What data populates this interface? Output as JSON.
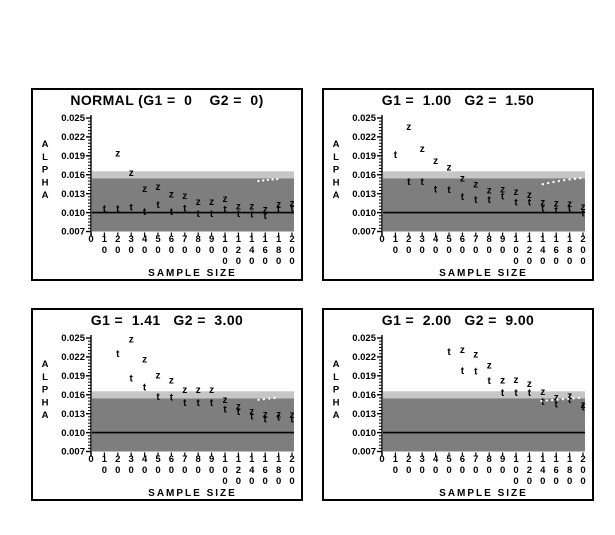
{
  "figure": {
    "background_color": "#ffffff",
    "panel_border_color": "#000000",
    "band_dark_color": "#7e7e7e",
    "band_light_color": "#c6c6c6",
    "marker_color": "#000000",
    "white_dot_color": "#ffffff",
    "y_axis": {
      "label": "ALPHA",
      "ticks": [
        0.025,
        0.022,
        0.019,
        0.016,
        0.013,
        0.01,
        0.007
      ],
      "tick_labels": [
        "0.025",
        "0.022",
        "0.019",
        "0.016",
        "0.013",
        "0.010",
        "0.007"
      ],
      "minor_tick_step": 0.0005
    },
    "x_axis": {
      "label": "SAMPLE SIZE",
      "ticks": [
        0,
        10,
        20,
        30,
        40,
        50,
        60,
        70,
        80,
        90,
        100,
        120,
        140,
        160,
        180,
        200
      ],
      "tick_labels": [
        "0",
        "10",
        "20",
        "30",
        "40",
        "50",
        "60",
        "70",
        "80",
        "90",
        "100",
        "120",
        "140",
        "160",
        "180",
        "200"
      ]
    }
  },
  "chart_data": [
    {
      "type": "scatter",
      "title": "NORMAL (G1 =  0    G2 =  0)",
      "xlabel": "SAMPLE SIZE",
      "ylabel": "ALPHA",
      "ylim": [
        0.007,
        0.025
      ],
      "nominal_alpha_line": 0.01,
      "shaded_bands": [
        {
          "range": [
            0.007,
            0.01545
          ],
          "color": "#7e7e7e"
        },
        {
          "range": [
            0.01545,
            0.01655
          ],
          "color": "#c6c6c6"
        }
      ],
      "series": [
        {
          "name": "z test",
          "marker": "z",
          "points": [
            [
              20,
              0.0194
            ],
            [
              30,
              0.0163
            ],
            [
              40,
              0.0138
            ],
            [
              50,
              0.0141
            ],
            [
              60,
              0.0129
            ],
            [
              70,
              0.0127
            ],
            [
              80,
              0.0117
            ],
            [
              90,
              0.0117
            ],
            [
              100,
              0.0122
            ],
            [
              120,
              0.011
            ],
            [
              140,
              0.011
            ],
            [
              160,
              0.0105
            ],
            [
              180,
              0.0113
            ],
            [
              200,
              0.0115
            ]
          ]
        },
        {
          "name": "t test",
          "marker": "t",
          "points": [
            [
              10,
              0.0106
            ],
            [
              20,
              0.0106
            ],
            [
              30,
              0.0108
            ],
            [
              40,
              0.0101
            ],
            [
              50,
              0.0112
            ],
            [
              60,
              0.0101
            ],
            [
              70,
              0.0107
            ],
            [
              80,
              0.0098
            ],
            [
              90,
              0.0098
            ],
            [
              100,
              0.0105
            ],
            [
              120,
              0.0098
            ],
            [
              140,
              0.0097
            ],
            [
              160,
              0.0095
            ],
            [
              180,
              0.0105
            ],
            [
              200,
              0.0107
            ]
          ]
        },
        {
          "name": "white dotted reference",
          "marker": "white-dot",
          "points": [
            [
              150,
              0.015
            ],
            [
              157,
              0.0151
            ],
            [
              164,
              0.01518
            ],
            [
              171,
              0.01525
            ],
            [
              178,
              0.01532
            ]
          ]
        }
      ]
    },
    {
      "type": "scatter",
      "title": "G1 =  1.00   G2 =  1.50",
      "xlabel": "SAMPLE SIZE",
      "ylabel": "ALPHA",
      "ylim": [
        0.007,
        0.025
      ],
      "nominal_alpha_line": 0.01,
      "shaded_bands": [
        {
          "range": [
            0.007,
            0.01545
          ],
          "color": "#7e7e7e"
        },
        {
          "range": [
            0.01545,
            0.01655
          ],
          "color": "#c6c6c6"
        }
      ],
      "series": [
        {
          "name": "z test",
          "marker": "z",
          "points": [
            [
              20,
              0.0236
            ],
            [
              30,
              0.0201
            ],
            [
              40,
              0.0182
            ],
            [
              50,
              0.0172
            ],
            [
              60,
              0.0154
            ],
            [
              70,
              0.0145
            ],
            [
              80,
              0.0135
            ],
            [
              90,
              0.0137
            ],
            [
              100,
              0.0133
            ],
            [
              120,
              0.0128
            ],
            [
              140,
              0.0116
            ],
            [
              160,
              0.0115
            ],
            [
              180,
              0.0114
            ],
            [
              200,
              0.0109
            ]
          ]
        },
        {
          "name": "t test",
          "marker": "t",
          "points": [
            [
              10,
              0.0192
            ],
            [
              20,
              0.0149
            ],
            [
              30,
              0.0149
            ],
            [
              40,
              0.0137
            ],
            [
              50,
              0.0136
            ],
            [
              60,
              0.0125
            ],
            [
              70,
              0.012
            ],
            [
              80,
              0.012
            ],
            [
              90,
              0.0126
            ],
            [
              100,
              0.0116
            ],
            [
              120,
              0.0116
            ],
            [
              140,
              0.0107
            ],
            [
              160,
              0.0104
            ],
            [
              180,
              0.0107
            ],
            [
              200,
              0.0099
            ]
          ]
        },
        {
          "name": "white dotted reference",
          "marker": "white-dot",
          "points": [
            [
              140,
              0.0145
            ],
            [
              148,
              0.01468
            ],
            [
              156,
              0.01485
            ],
            [
              164,
              0.015
            ],
            [
              172,
              0.01513
            ],
            [
              180,
              0.01525
            ],
            [
              188,
              0.01535
            ],
            [
              196,
              0.01545
            ]
          ]
        }
      ]
    },
    {
      "type": "scatter",
      "title": "G1 =  1.41   G2 =  3.00",
      "xlabel": "SAMPLE SIZE",
      "ylabel": "ALPHA",
      "ylim": [
        0.007,
        0.025
      ],
      "nominal_alpha_line": 0.01,
      "shaded_bands": [
        {
          "range": [
            0.007,
            0.01545
          ],
          "color": "#7e7e7e"
        },
        {
          "range": [
            0.01545,
            0.01655
          ],
          "color": "#c6c6c6"
        }
      ],
      "series": [
        {
          "name": "z test",
          "marker": "z",
          "points": [
            [
              30,
              0.0248
            ],
            [
              40,
              0.0216
            ],
            [
              50,
              0.0191
            ],
            [
              60,
              0.0183
            ],
            [
              70,
              0.0168
            ],
            [
              80,
              0.0168
            ],
            [
              90,
              0.0168
            ],
            [
              100,
              0.0152
            ],
            [
              120,
              0.0142
            ],
            [
              140,
              0.0134
            ],
            [
              160,
              0.0129
            ],
            [
              180,
              0.0129
            ],
            [
              200,
              0.0128
            ]
          ]
        },
        {
          "name": "t test",
          "marker": "t",
          "points": [
            [
              20,
              0.0225
            ],
            [
              30,
              0.0186
            ],
            [
              40,
              0.0172
            ],
            [
              50,
              0.0157
            ],
            [
              60,
              0.0156
            ],
            [
              70,
              0.0147
            ],
            [
              80,
              0.0147
            ],
            [
              90,
              0.0147
            ],
            [
              100,
              0.0137
            ],
            [
              120,
              0.0133
            ],
            [
              140,
              0.0126
            ],
            [
              160,
              0.0121
            ],
            [
              180,
              0.0124
            ],
            [
              200,
              0.0121
            ]
          ]
        },
        {
          "name": "white dotted reference",
          "marker": "white-dot",
          "points": [
            [
              150,
              0.0152
            ],
            [
              158,
              0.0153
            ],
            [
              166,
              0.0154
            ],
            [
              174,
              0.01548
            ]
          ]
        }
      ]
    },
    {
      "type": "scatter",
      "title": "G1 =  2.00   G2 =  9.00",
      "xlabel": "SAMPLE SIZE",
      "ylabel": "ALPHA",
      "ylim": [
        0.007,
        0.025
      ],
      "nominal_alpha_line": 0.01,
      "shaded_bands": [
        {
          "range": [
            0.007,
            0.01545
          ],
          "color": "#7e7e7e"
        },
        {
          "range": [
            0.01545,
            0.01655
          ],
          "color": "#c6c6c6"
        }
      ],
      "series": [
        {
          "name": "z test",
          "marker": "z",
          "points": [
            [
              60,
              0.0231
            ],
            [
              70,
              0.0224
            ],
            [
              80,
              0.0207
            ],
            [
              90,
              0.0183
            ],
            [
              100,
              0.0184
            ],
            [
              120,
              0.0177
            ],
            [
              140,
              0.0165
            ],
            [
              160,
              0.0156
            ],
            [
              180,
              0.0158
            ],
            [
              200,
              0.0144
            ]
          ]
        },
        {
          "name": "t test",
          "marker": "t",
          "points": [
            [
              50,
              0.0228
            ],
            [
              60,
              0.0198
            ],
            [
              70,
              0.0197
            ],
            [
              80,
              0.0182
            ],
            [
              90,
              0.0163
            ],
            [
              100,
              0.0163
            ],
            [
              120,
              0.0163
            ],
            [
              140,
              0.0149
            ],
            [
              160,
              0.0145
            ],
            [
              180,
              0.0152
            ],
            [
              200,
              0.014
            ]
          ]
        },
        {
          "name": "white dotted reference",
          "marker": "white-dot",
          "points": [
            [
              138,
              0.015
            ],
            [
              146,
              0.01508
            ],
            [
              154,
              0.01515
            ],
            [
              162,
              0.01522
            ],
            [
              170,
              0.01529
            ],
            [
              178,
              0.01536
            ],
            [
              186,
              0.01543
            ],
            [
              194,
              0.0155
            ]
          ]
        }
      ]
    }
  ]
}
